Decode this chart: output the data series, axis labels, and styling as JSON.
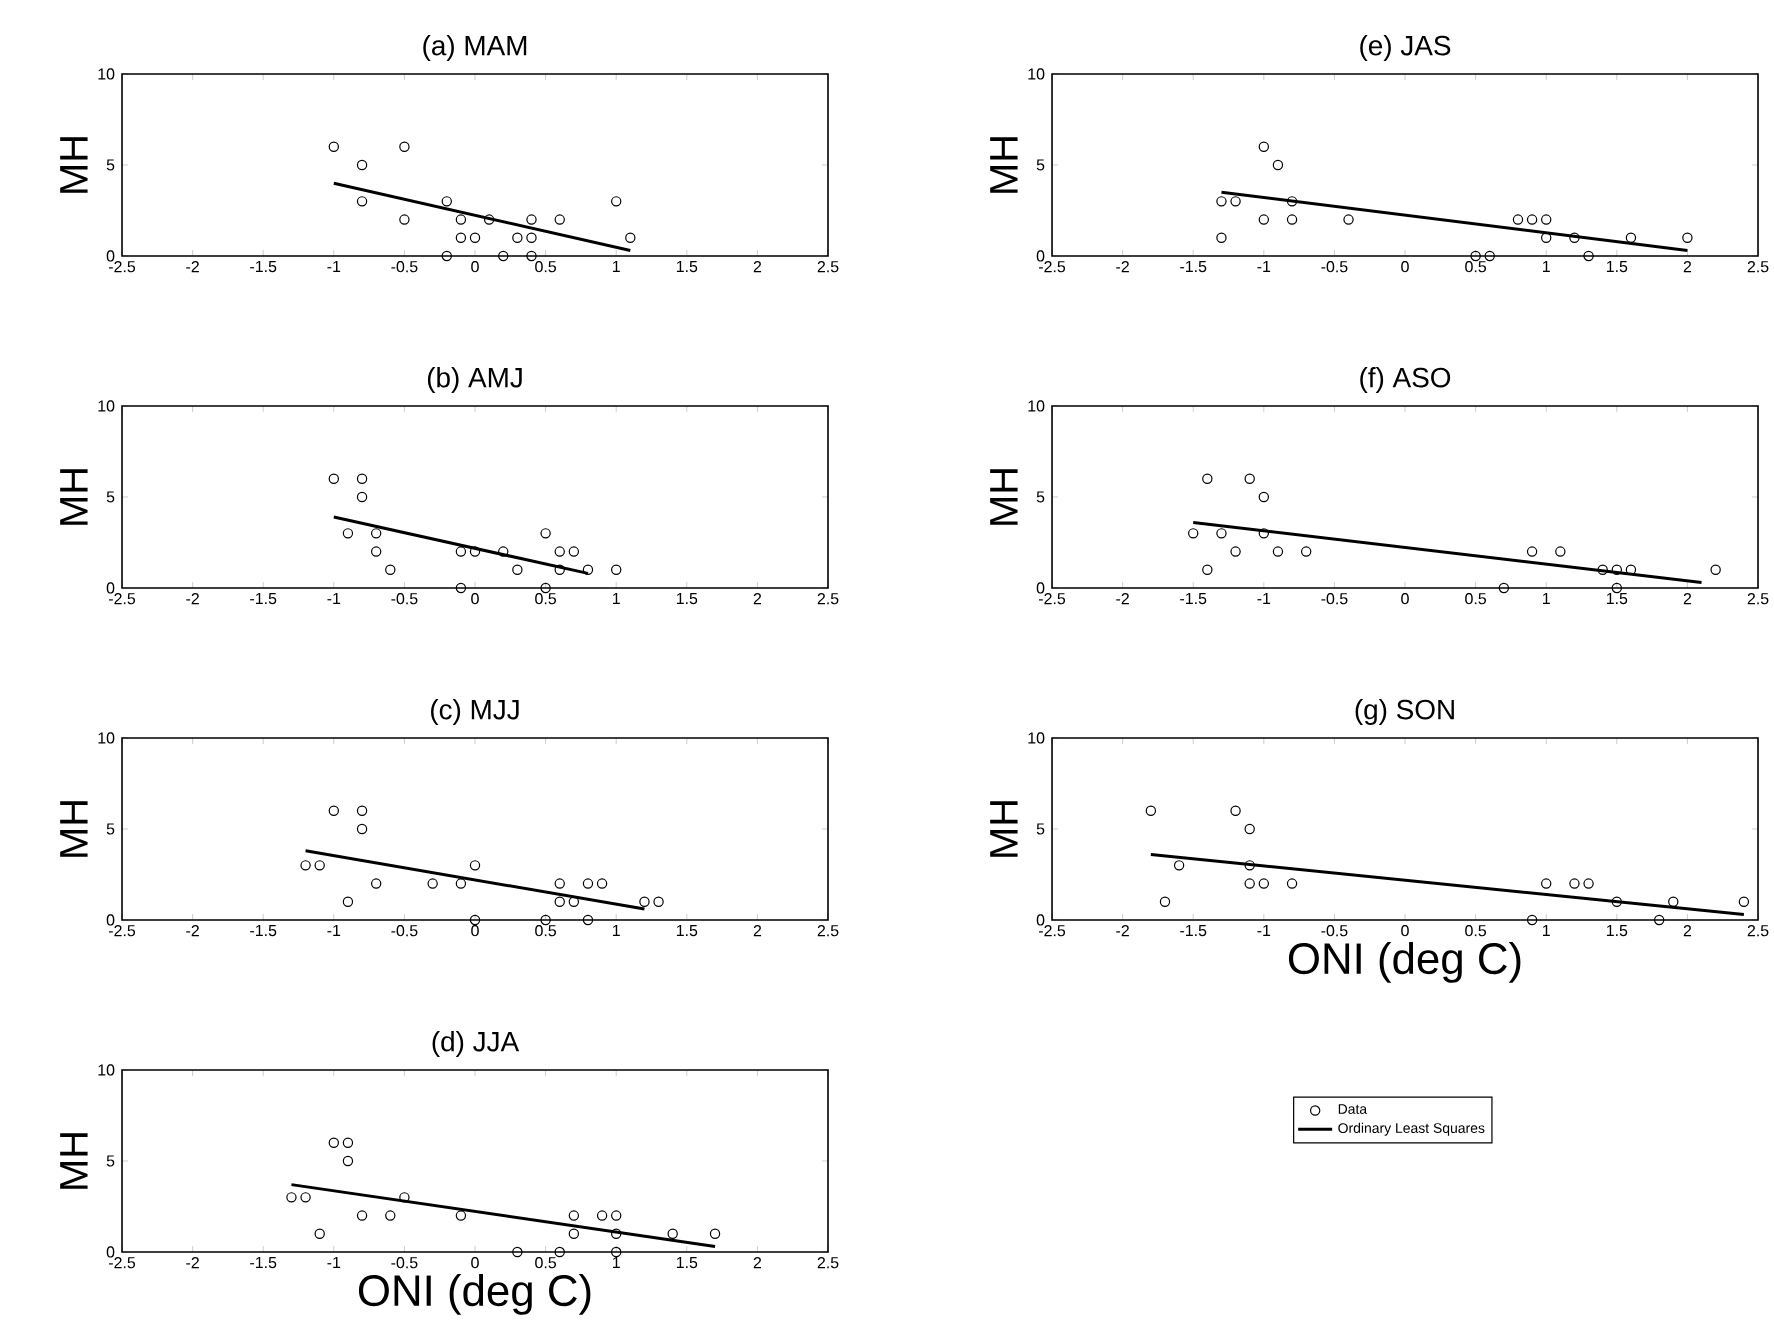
{
  "chart_data": [
    {
      "type": "scatter",
      "title": "(a) MAM",
      "ylabel": "MH",
      "xlim": [
        -2.5,
        2.5
      ],
      "ylim": [
        0,
        10
      ],
      "xticks": [
        -2.5,
        -2,
        -1.5,
        -1,
        -0.5,
        0,
        0.5,
        1,
        1.5,
        2,
        2.5
      ],
      "yticks": [
        0,
        5,
        10
      ],
      "grid": false,
      "legend": false,
      "series": [
        {
          "type": "scatter",
          "color": "#000000",
          "marker": "circle",
          "x": [
            -1,
            -0.8,
            -0.8,
            -0.5,
            -0.5,
            -0.2,
            -0.2,
            -0.1,
            -0.1,
            0,
            0.1,
            0.2,
            0.3,
            0.4,
            0.4,
            0.4,
            0.6,
            1.0,
            1.1
          ],
          "values": [
            6,
            5,
            3,
            6,
            2,
            3,
            0,
            2,
            1,
            1,
            2,
            0,
            1,
            2,
            1,
            0,
            2,
            3,
            1
          ]
        },
        {
          "type": "line",
          "color": "#000000",
          "line_style": "solid",
          "x": [
            -1,
            1.1
          ],
          "values": [
            4,
            0.3
          ]
        }
      ]
    },
    {
      "type": "scatter",
      "title": "(b) AMJ",
      "ylabel": "MH",
      "xlim": [
        -2.5,
        2.5
      ],
      "ylim": [
        0,
        10
      ],
      "xticks": [
        -2.5,
        -2,
        -1.5,
        -1,
        -0.5,
        0,
        0.5,
        1,
        1.5,
        2,
        2.5
      ],
      "yticks": [
        0,
        5,
        10
      ],
      "grid": false,
      "legend": false,
      "series": [
        {
          "type": "scatter",
          "color": "#000000",
          "marker": "circle",
          "x": [
            -1,
            -0.8,
            -0.8,
            -0.9,
            -0.7,
            -0.7,
            -0.6,
            -0.1,
            -0.1,
            0,
            0.2,
            0.3,
            0.5,
            0.5,
            0.6,
            0.6,
            0.7,
            0.8,
            1.0
          ],
          "values": [
            6,
            6,
            5,
            3,
            3,
            2,
            1,
            2,
            0,
            2,
            2,
            1,
            3,
            0,
            2,
            1,
            2,
            1,
            1
          ]
        },
        {
          "type": "line",
          "color": "#000000",
          "line_style": "solid",
          "x": [
            -1,
            0.8
          ],
          "values": [
            3.9,
            0.8
          ]
        }
      ]
    },
    {
      "type": "scatter",
      "title": "(c) MJJ",
      "ylabel": "MH",
      "xlim": [
        -2.5,
        2.5
      ],
      "ylim": [
        0,
        10
      ],
      "xticks": [
        -2.5,
        -2,
        -1.5,
        -1,
        -0.5,
        0,
        0.5,
        1,
        1.5,
        2,
        2.5
      ],
      "yticks": [
        0,
        5,
        10
      ],
      "grid": false,
      "legend": false,
      "series": [
        {
          "type": "scatter",
          "color": "#000000",
          "marker": "circle",
          "x": [
            -1.2,
            -1.1,
            -1,
            -0.9,
            -0.8,
            -0.8,
            -0.7,
            -0.3,
            -0.1,
            0,
            0,
            0.5,
            0.6,
            0.6,
            0.7,
            0.8,
            0.8,
            0.9,
            1.2,
            1.3
          ],
          "values": [
            3,
            3,
            6,
            1,
            6,
            5,
            2,
            2,
            2,
            3,
            0,
            0,
            2,
            1,
            1,
            2,
            0,
            2,
            1,
            1
          ]
        },
        {
          "type": "line",
          "color": "#000000",
          "line_style": "solid",
          "x": [
            -1.2,
            1.2
          ],
          "values": [
            3.8,
            0.6
          ]
        }
      ]
    },
    {
      "type": "scatter",
      "title": "(d) JJA",
      "ylabel": "MH",
      "xlabel": "ONI (deg C)",
      "xlim": [
        -2.5,
        2.5
      ],
      "ylim": [
        0,
        10
      ],
      "xticks": [
        -2.5,
        -2,
        -1.5,
        -1,
        -0.5,
        0,
        0.5,
        1,
        1.5,
        2,
        2.5
      ],
      "yticks": [
        0,
        5,
        10
      ],
      "grid": false,
      "legend": "right",
      "series": [
        {
          "type": "scatter",
          "name": "Data",
          "color": "#000000",
          "marker": "circle",
          "x": [
            -1.3,
            -1.2,
            -1.1,
            -1,
            -0.9,
            -0.9,
            -0.8,
            -0.6,
            -0.5,
            -0.1,
            0.3,
            0.6,
            0.7,
            0.7,
            0.9,
            1.0,
            1.0,
            1.0,
            1.4,
            1.7
          ],
          "values": [
            3,
            3,
            1,
            6,
            6,
            5,
            2,
            2,
            3,
            2,
            0,
            0,
            2,
            1,
            2,
            2,
            1,
            0,
            1,
            1
          ]
        },
        {
          "type": "line",
          "name": "Ordinary Least Squares",
          "color": "#000000",
          "line_style": "solid",
          "x": [
            -1.3,
            1.7
          ],
          "values": [
            3.7,
            0.3
          ]
        }
      ]
    },
    {
      "type": "scatter",
      "title": "(e) JAS",
      "ylabel": "MH",
      "xlim": [
        -2.5,
        2.5
      ],
      "ylim": [
        0,
        10
      ],
      "xticks": [
        -2.5,
        -2,
        -1.5,
        -1,
        -0.5,
        0,
        0.5,
        1,
        1.5,
        2,
        2.5
      ],
      "yticks": [
        0,
        5,
        10
      ],
      "grid": false,
      "legend": false,
      "series": [
        {
          "type": "scatter",
          "color": "#000000",
          "marker": "circle",
          "x": [
            -1.3,
            -1.3,
            -1.2,
            -1,
            -1,
            -0.9,
            -0.8,
            -0.8,
            -0.4,
            0.5,
            0.6,
            0.8,
            0.9,
            1.0,
            1.0,
            1.2,
            1.3,
            1.6,
            2.0
          ],
          "values": [
            3,
            1,
            3,
            6,
            2,
            5,
            3,
            2,
            2,
            0,
            0,
            2,
            2,
            2,
            1,
            1,
            0,
            1,
            1
          ]
        },
        {
          "type": "line",
          "color": "#000000",
          "line_style": "solid",
          "x": [
            -1.3,
            2.0
          ],
          "values": [
            3.5,
            0.3
          ]
        }
      ]
    },
    {
      "type": "scatter",
      "title": "(f) ASO",
      "ylabel": "MH",
      "xlim": [
        -2.5,
        2.5
      ],
      "ylim": [
        0,
        10
      ],
      "xticks": [
        -2.5,
        -2,
        -1.5,
        -1,
        -0.5,
        0,
        0.5,
        1,
        1.5,
        2,
        2.5
      ],
      "yticks": [
        0,
        5,
        10
      ],
      "grid": false,
      "legend": false,
      "series": [
        {
          "type": "scatter",
          "color": "#000000",
          "marker": "circle",
          "x": [
            -1.5,
            -1.4,
            -1.4,
            -1.3,
            -1.2,
            -1.1,
            -1,
            -1,
            -0.9,
            -0.7,
            0.7,
            0.9,
            1.1,
            1.4,
            1.5,
            1.5,
            1.6,
            2.2
          ],
          "values": [
            3,
            6,
            1,
            3,
            2,
            6,
            5,
            3,
            2,
            2,
            0,
            2,
            2,
            1,
            1,
            0,
            1,
            1
          ]
        },
        {
          "type": "line",
          "color": "#000000",
          "line_style": "solid",
          "x": [
            -1.5,
            2.1
          ],
          "values": [
            3.6,
            0.3
          ]
        }
      ]
    },
    {
      "type": "scatter",
      "title": "(g) SON",
      "ylabel": "MH",
      "xlabel": "ONI (deg C)",
      "xlim": [
        -2.5,
        2.5
      ],
      "ylim": [
        0,
        10
      ],
      "xticks": [
        -2.5,
        -2,
        -1.5,
        -1,
        -0.5,
        0,
        0.5,
        1,
        1.5,
        2,
        2.5
      ],
      "yticks": [
        0,
        5,
        10
      ],
      "grid": false,
      "legend": false,
      "series": [
        {
          "type": "scatter",
          "color": "#000000",
          "marker": "circle",
          "x": [
            -1.8,
            -1.7,
            -1.6,
            -1.2,
            -1.1,
            -1.1,
            -1.1,
            -1,
            -0.8,
            0.9,
            1.0,
            1.2,
            1.3,
            1.5,
            1.8,
            1.9,
            2.4
          ],
          "values": [
            6,
            1,
            3,
            6,
            5,
            3,
            2,
            2,
            2,
            0,
            2,
            2,
            2,
            1,
            0,
            1,
            1
          ]
        },
        {
          "type": "line",
          "color": "#000000",
          "line_style": "solid",
          "x": [
            -1.8,
            2.4
          ],
          "values": [
            3.6,
            0.3
          ]
        }
      ]
    }
  ]
}
